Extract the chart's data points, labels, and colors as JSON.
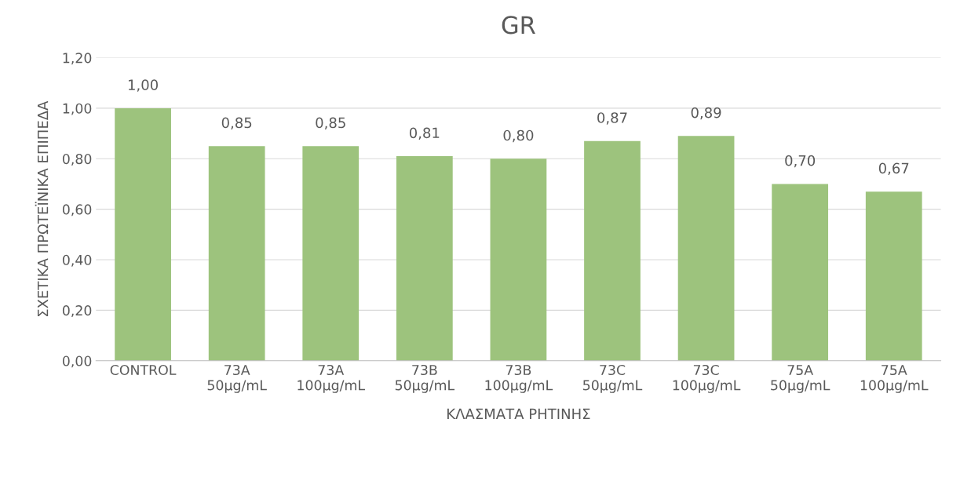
{
  "chart_data": {
    "type": "bar",
    "title": "GR",
    "xlabel": "ΚΛΑΣΜΑΤΑ ΡΗΤΙΝΗΣ",
    "ylabel": "ΣΧΕΤΙΚΑ ΠΡΩΤΕΪΝΙΚΑ ΕΠΙΠΕΔΑ",
    "categories": [
      "CONTROL",
      "73A\n50μg/mL",
      "73A\n100μg/mL",
      "73B\n50μg/mL",
      "73B\n100μg/mL",
      "73C\n50μg/mL",
      "73C\n100μg/mL",
      "75A\n50μg/mL",
      "75A\n100μg/mL"
    ],
    "values": [
      1.0,
      0.85,
      0.85,
      0.81,
      0.8,
      0.87,
      0.89,
      0.7,
      0.67
    ],
    "value_labels": [
      "1,00",
      "0,85",
      "0,85",
      "0,81",
      "0,80",
      "0,87",
      "0,89",
      "0,70",
      "0,67"
    ],
    "color": "#9dc37d",
    "ylim": [
      0,
      1.2
    ],
    "yticks": [
      {
        "value": 0,
        "label": "0,00"
      },
      {
        "value": 0.2,
        "label": "0,20"
      },
      {
        "value": 0.4,
        "label": "0,40"
      },
      {
        "value": 0.6,
        "label": "0,60"
      },
      {
        "value": 0.8,
        "label": "0,80"
      },
      {
        "value": 1.0,
        "label": "1,00"
      },
      {
        "value": 1.2,
        "label": "1,20"
      }
    ],
    "grid": "y",
    "legend": false
  }
}
